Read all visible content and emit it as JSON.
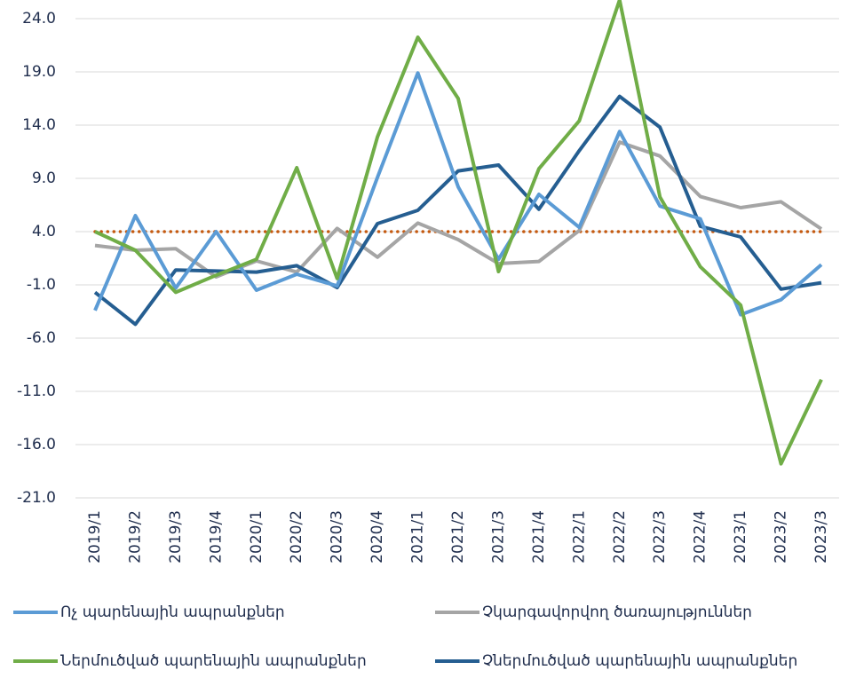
{
  "chart_data": {
    "type": "line",
    "categories": [
      "2019/1",
      "2019/2",
      "2019/3",
      "2019/4",
      "2020/1",
      "2020/2",
      "2020/3",
      "2020/4",
      "2021/1",
      "2021/2",
      "2021/3",
      "2021/4",
      "2022/1",
      "2022/2",
      "2022/3",
      "2022/4",
      "2023/1",
      "2023/2",
      "2023/3"
    ],
    "series": [
      {
        "name": "Ոչ պարենային ապրանքներ",
        "color": "#5b9bd5",
        "values": [
          -3.4,
          5.5,
          -1.3,
          4.0,
          -1.5,
          0.0,
          -1.1,
          9.1,
          18.9,
          8.2,
          1.4,
          7.5,
          4.4,
          13.4,
          6.4,
          5.2,
          -3.8,
          -2.4,
          0.9
        ]
      },
      {
        "name": "Չկարգավորվող ծառայություններ",
        "color": "#a5a5a5",
        "values": [
          2.7,
          2.25,
          2.4,
          -0.25,
          1.25,
          0.2,
          4.3,
          1.6,
          4.8,
          3.25,
          1.0,
          1.2,
          4.1,
          12.4,
          11.1,
          7.3,
          6.25,
          6.8,
          4.25
        ]
      },
      {
        "name": "Ներմուծված պարենային ապրանքներ",
        "color": "#70ad47",
        "values": [
          4.0,
          2.25,
          -1.7,
          -0.1,
          1.4,
          10.0,
          -0.4,
          12.9,
          22.25,
          16.5,
          0.25,
          9.9,
          14.4,
          25.75,
          7.25,
          0.7,
          -2.9,
          -17.8,
          -9.9
        ]
      },
      {
        "name": "Չներմուծված պարենային ապրանքներ",
        "color": "#255e91",
        "values": [
          -1.7,
          -4.7,
          0.4,
          0.3,
          0.2,
          0.8,
          -1.25,
          4.75,
          6.0,
          9.7,
          10.25,
          6.1,
          11.6,
          16.7,
          13.8,
          4.5,
          3.5,
          -1.4,
          -0.8
        ]
      }
    ],
    "reference_line": {
      "value": 4,
      "color": "#c55a11"
    },
    "ylim": [
      -21,
      24
    ],
    "yticks": [
      {
        "value": -21,
        "label": "-21.0"
      },
      {
        "value": -16,
        "label": "-16.0"
      },
      {
        "value": -11,
        "label": "-11.0"
      },
      {
        "value": -6,
        "label": "-6.0"
      },
      {
        "value": -1,
        "label": "-1.0"
      },
      {
        "value": 4,
        "label": "4.0"
      },
      {
        "value": 9,
        "label": "9.0"
      },
      {
        "value": 14,
        "label": "14.0"
      },
      {
        "value": 19,
        "label": "19.0"
      },
      {
        "value": 24,
        "label": "24.0"
      }
    ],
    "grid": true
  }
}
